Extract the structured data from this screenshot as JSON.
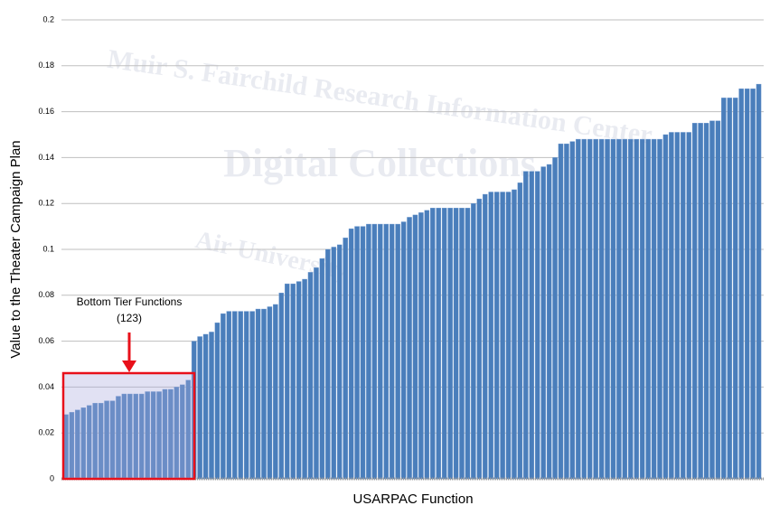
{
  "chart_data": {
    "type": "bar",
    "x_label": "USARPAC Function",
    "y_label": "Value to the Theater Campaign Plan",
    "annotation": {
      "lines": [
        "Bottom Tier Functions",
        "(123)"
      ]
    },
    "watermark": [
      "Muir S. Fairchild Research Information Center",
      "Digital Collections",
      "Air University"
    ],
    "color": "#4a7ebb",
    "ylim": [
      0,
      0.2
    ],
    "yticks": [
      0,
      0.02,
      0.04,
      0.06,
      0.08,
      0.1,
      0.12,
      0.14,
      0.16,
      0.18,
      0.2
    ],
    "grid": true,
    "categories": [
      null,
      null,
      null,
      null,
      null,
      null,
      null,
      null,
      null,
      null,
      null,
      null,
      null,
      null,
      null,
      null,
      null,
      null,
      null,
      null,
      null,
      null,
      null,
      null,
      null,
      null,
      null,
      null,
      null,
      null,
      null,
      null,
      null,
      null,
      null,
      null,
      null,
      null,
      null,
      null,
      null,
      null,
      null,
      null,
      null,
      null,
      null,
      null,
      null,
      null,
      null,
      null,
      null,
      null,
      null,
      null,
      null,
      null,
      null,
      null,
      null,
      null,
      null,
      null,
      null,
      null,
      null,
      null,
      null,
      null,
      null,
      null,
      null,
      null,
      null,
      null,
      null,
      null,
      null,
      null,
      null,
      null,
      null,
      null,
      null,
      null,
      null,
      null,
      null,
      null,
      null,
      null,
      null,
      null,
      null,
      null,
      null,
      null,
      null,
      null,
      null,
      null,
      null,
      null,
      null,
      null,
      null,
      null,
      null,
      null,
      null,
      null,
      null,
      null,
      null,
      null,
      null,
      null,
      null,
      null
    ],
    "values": [
      0.028,
      0.029,
      0.03,
      0.031,
      0.032,
      0.033,
      0.033,
      0.034,
      0.034,
      0.036,
      0.037,
      0.037,
      0.037,
      0.037,
      0.038,
      0.038,
      0.038,
      0.039,
      0.039,
      0.04,
      0.041,
      0.043,
      0.06,
      0.062,
      0.063,
      0.064,
      0.068,
      0.072,
      0.073,
      0.073,
      0.073,
      0.073,
      0.073,
      0.074,
      0.074,
      0.075,
      0.076,
      0.081,
      0.085,
      0.085,
      0.086,
      0.087,
      0.09,
      0.092,
      0.096,
      0.1,
      0.101,
      0.102,
      0.105,
      0.109,
      0.11,
      0.11,
      0.111,
      0.111,
      0.111,
      0.111,
      0.111,
      0.111,
      0.112,
      0.114,
      0.115,
      0.116,
      0.117,
      0.118,
      0.118,
      0.118,
      0.118,
      0.118,
      0.118,
      0.118,
      0.12,
      0.122,
      0.124,
      0.125,
      0.125,
      0.125,
      0.125,
      0.126,
      0.129,
      0.134,
      0.134,
      0.134,
      0.136,
      0.137,
      0.14,
      0.146,
      0.146,
      0.147,
      0.148,
      0.148,
      0.148,
      0.148,
      0.148,
      0.148,
      0.148,
      0.148,
      0.148,
      0.148,
      0.148,
      0.148,
      0.148,
      0.148,
      0.148,
      0.15,
      0.151,
      0.151,
      0.151,
      0.151,
      0.155,
      0.155,
      0.155,
      0.156,
      0.156,
      0.166,
      0.166,
      0.166,
      0.17,
      0.17,
      0.17,
      0.172
    ]
  }
}
